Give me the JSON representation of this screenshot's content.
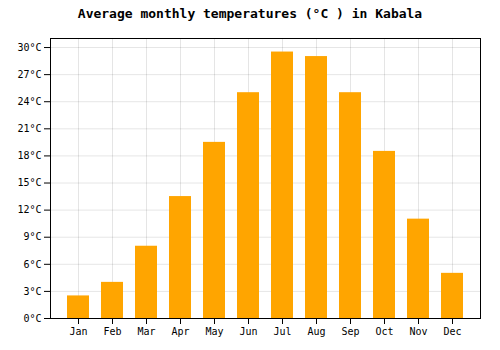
{
  "chart_data": {
    "type": "bar",
    "title": "Average monthly temperatures (°C ) in Kabala",
    "categories": [
      "Jan",
      "Feb",
      "Mar",
      "Apr",
      "May",
      "Jun",
      "Jul",
      "Aug",
      "Sep",
      "Oct",
      "Nov",
      "Dec"
    ],
    "values": [
      2.5,
      4.0,
      8.0,
      13.5,
      19.5,
      25.0,
      29.5,
      29.0,
      25.0,
      18.5,
      11.0,
      5.0
    ],
    "color": "#FFA500",
    "ylim": [
      0,
      31
    ],
    "yticks": [
      {
        "value": 0,
        "label": "0°C"
      },
      {
        "value": 3,
        "label": "3°C"
      },
      {
        "value": 6,
        "label": "6°C"
      },
      {
        "value": 9,
        "label": "9°C"
      },
      {
        "value": 12,
        "label": "12°C"
      },
      {
        "value": 15,
        "label": "15°C"
      },
      {
        "value": 18,
        "label": "18°C"
      },
      {
        "value": 21,
        "label": "21°C"
      },
      {
        "value": 24,
        "label": "24°C"
      },
      {
        "value": 27,
        "label": "27°C"
      },
      {
        "value": 30,
        "label": "30°C"
      }
    ],
    "grid": true
  }
}
